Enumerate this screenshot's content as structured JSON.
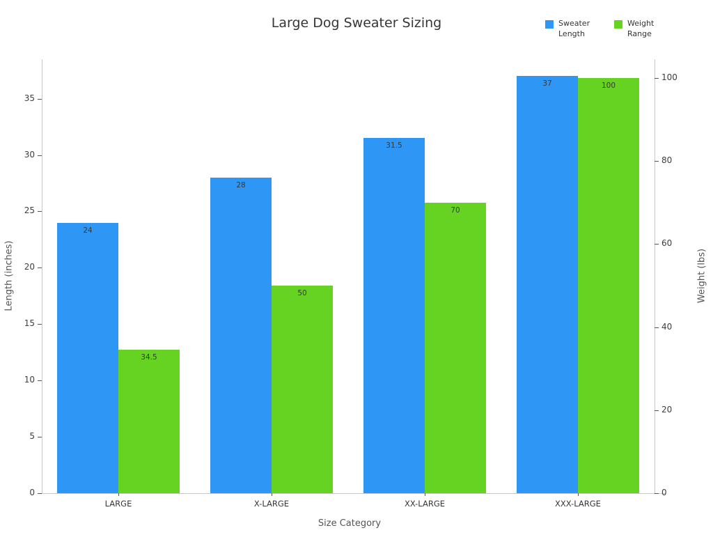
{
  "chart_data": {
    "type": "bar",
    "title": "Large Dog Sweater Sizing",
    "categories": [
      "LARGE",
      "X-LARGE",
      "XX-LARGE",
      "XXX-LARGE"
    ],
    "series": [
      {
        "name": "Sweater Length",
        "axis": "left",
        "color": "#2E96F5",
        "values": [
          24,
          28,
          31.5,
          37
        ]
      },
      {
        "name": "Weight Range",
        "axis": "right",
        "color": "#66D222",
        "values": [
          34.5,
          50,
          70,
          100
        ]
      }
    ],
    "xlabel": "Size Category",
    "left_axis": {
      "label": "Length (inches)",
      "ticks": [
        0,
        5,
        10,
        15,
        20,
        25,
        30,
        35
      ],
      "range": [
        0,
        38.5
      ]
    },
    "right_axis": {
      "label": "Weight (lbs)",
      "ticks": [
        0,
        20,
        40,
        60,
        80,
        100
      ],
      "range": [
        0,
        104.5
      ]
    },
    "legend": {
      "position": "top-right",
      "items": [
        "Sweater Length",
        "Weight Range"
      ]
    },
    "grid": false,
    "value_labels_shown": true
  }
}
